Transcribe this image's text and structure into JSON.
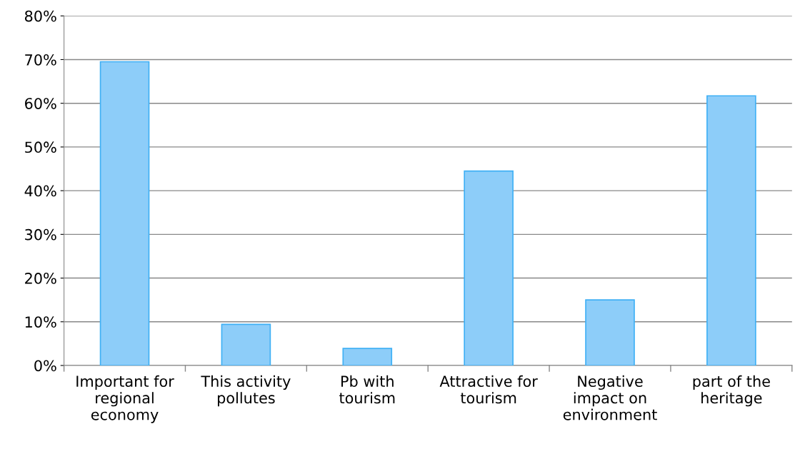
{
  "chart_data": {
    "type": "bar",
    "categories": [
      "Important for regional economy",
      "This activity pollutes",
      "Pb with tourism",
      "Attractive for tourism",
      "Negative impact on environment",
      "part of the heritage"
    ],
    "values": [
      69.5,
      9.4,
      3.9,
      44.5,
      15,
      61.7
    ],
    "color": "#8dcdf9",
    "ylim": [
      0,
      80
    ],
    "yticks": [
      {
        "value": 0,
        "label": "0%"
      },
      {
        "value": 10,
        "label": "10%"
      },
      {
        "value": 20,
        "label": "20%"
      },
      {
        "value": 30,
        "label": "30%"
      },
      {
        "value": 40,
        "label": "40%"
      },
      {
        "value": 50,
        "label": "50%"
      },
      {
        "value": 60,
        "label": "60%"
      },
      {
        "value": 70,
        "label": "70%"
      },
      {
        "value": 80,
        "label": "80%"
      }
    ],
    "grid": "y",
    "legend": false
  }
}
